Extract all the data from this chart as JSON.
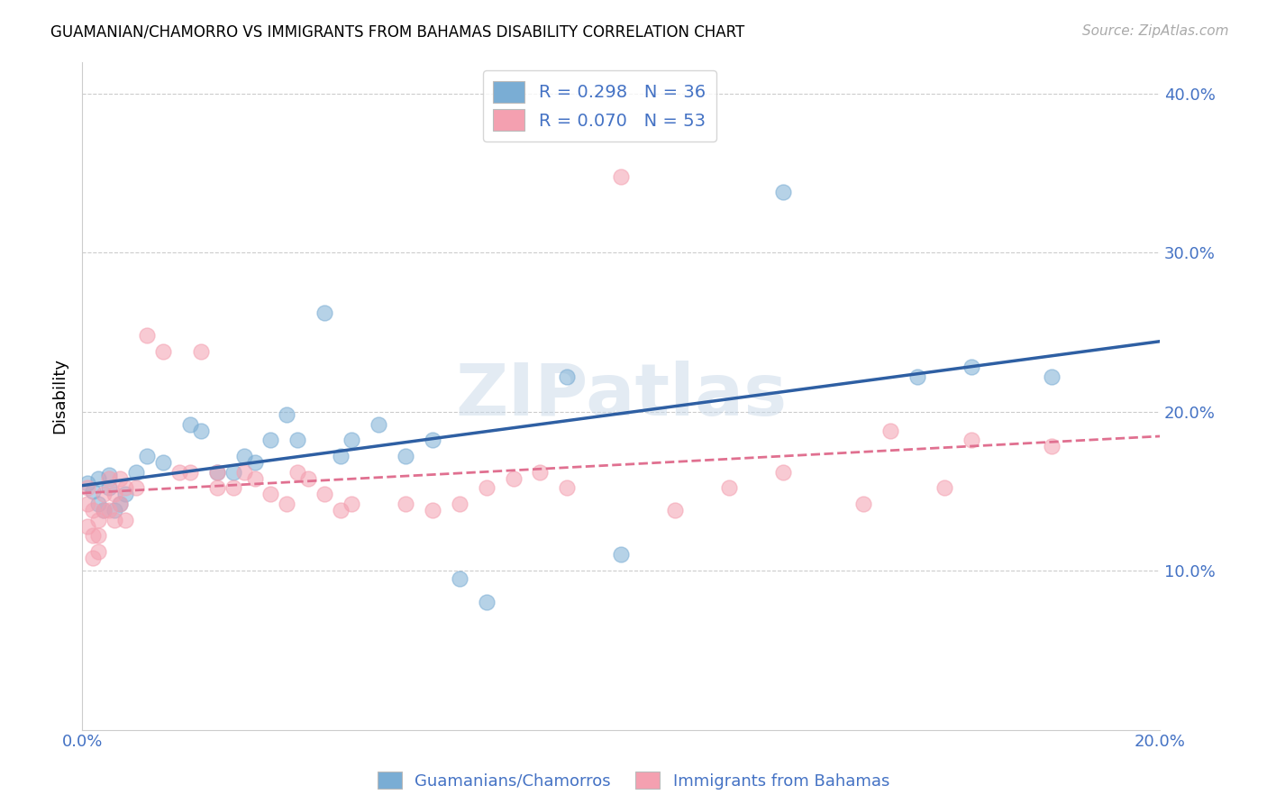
{
  "title": "GUAMANIAN/CHAMORRO VS IMMIGRANTS FROM BAHAMAS DISABILITY CORRELATION CHART",
  "source": "Source: ZipAtlas.com",
  "xlabel_color": "#4472c4",
  "ylabel": "Disability",
  "xlim": [
    0.0,
    0.2
  ],
  "ylim": [
    0.0,
    0.42
  ],
  "xticks": [
    0.0,
    0.05,
    0.1,
    0.15,
    0.2
  ],
  "yticks": [
    0.0,
    0.1,
    0.2,
    0.3,
    0.4
  ],
  "ytick_labels": [
    "",
    "10.0%",
    "20.0%",
    "30.0%",
    "40.0%"
  ],
  "xtick_labels": [
    "0.0%",
    "",
    "",
    "",
    "20.0%"
  ],
  "blue_color": "#7aadd4",
  "pink_color": "#f4a0b0",
  "blue_line_color": "#2e5fa3",
  "pink_line_color": "#e07090",
  "watermark": "ZIPatlas",
  "blue_scatter_x": [
    0.001,
    0.002,
    0.003,
    0.003,
    0.004,
    0.005,
    0.005,
    0.006,
    0.007,
    0.008,
    0.01,
    0.012,
    0.015,
    0.02,
    0.022,
    0.025,
    0.028,
    0.03,
    0.032,
    0.035,
    0.038,
    0.04,
    0.045,
    0.048,
    0.05,
    0.055,
    0.06,
    0.065,
    0.07,
    0.075,
    0.09,
    0.1,
    0.13,
    0.155,
    0.165,
    0.18
  ],
  "blue_scatter_y": [
    0.155,
    0.15,
    0.158,
    0.142,
    0.138,
    0.16,
    0.152,
    0.138,
    0.142,
    0.148,
    0.162,
    0.172,
    0.168,
    0.192,
    0.188,
    0.162,
    0.162,
    0.172,
    0.168,
    0.182,
    0.198,
    0.182,
    0.262,
    0.172,
    0.182,
    0.192,
    0.172,
    0.182,
    0.095,
    0.08,
    0.222,
    0.11,
    0.338,
    0.222,
    0.228,
    0.222
  ],
  "pink_scatter_x": [
    0.001,
    0.001,
    0.001,
    0.002,
    0.002,
    0.002,
    0.003,
    0.003,
    0.003,
    0.004,
    0.004,
    0.005,
    0.005,
    0.006,
    0.006,
    0.007,
    0.007,
    0.008,
    0.008,
    0.01,
    0.012,
    0.015,
    0.018,
    0.02,
    0.022,
    0.025,
    0.025,
    0.028,
    0.03,
    0.032,
    0.035,
    0.038,
    0.04,
    0.042,
    0.045,
    0.048,
    0.05,
    0.06,
    0.065,
    0.07,
    0.075,
    0.08,
    0.085,
    0.09,
    0.1,
    0.11,
    0.12,
    0.13,
    0.145,
    0.15,
    0.16,
    0.165,
    0.18
  ],
  "pink_scatter_y": [
    0.142,
    0.152,
    0.128,
    0.138,
    0.122,
    0.108,
    0.132,
    0.122,
    0.112,
    0.148,
    0.138,
    0.158,
    0.138,
    0.148,
    0.132,
    0.158,
    0.142,
    0.152,
    0.132,
    0.152,
    0.248,
    0.238,
    0.162,
    0.162,
    0.238,
    0.162,
    0.152,
    0.152,
    0.162,
    0.158,
    0.148,
    0.142,
    0.162,
    0.158,
    0.148,
    0.138,
    0.142,
    0.142,
    0.138,
    0.142,
    0.152,
    0.158,
    0.162,
    0.152,
    0.348,
    0.138,
    0.152,
    0.162,
    0.142,
    0.188,
    0.152,
    0.182,
    0.178
  ]
}
